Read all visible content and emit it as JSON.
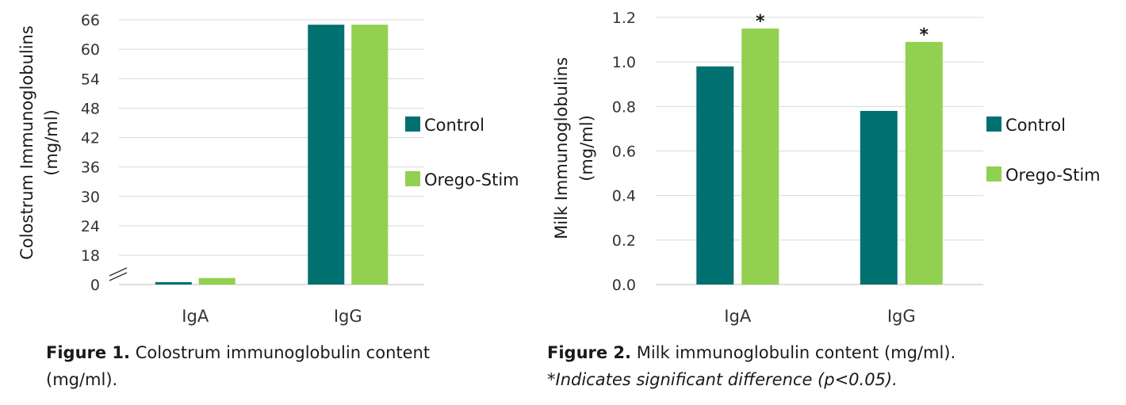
{
  "figure1": {
    "caption_label": "Figure 1.",
    "caption_text": "Colostrum immunoglobulin content (mg/ml).",
    "chart_data": {
      "type": "bar",
      "title": "",
      "xlabel": "",
      "ylabel_line1": "Colostrum Immunoglobulins",
      "ylabel_line2": "(mg/ml)",
      "categories": [
        "IgA",
        "IgG"
      ],
      "series": [
        {
          "name": "Control",
          "color": "#007070",
          "values": [
            1.5,
            65
          ]
        },
        {
          "name": "Orego-Stim",
          "color": "#92d050",
          "values": [
            4,
            65
          ]
        }
      ],
      "y_ticks": [
        0,
        18,
        24,
        30,
        36,
        42,
        48,
        54,
        60,
        66
      ],
      "ylim": [
        0,
        66
      ],
      "axis_break": [
        0,
        18
      ],
      "legend_position": "right",
      "gridlines": true
    }
  },
  "figure2": {
    "caption_label": "Figure 2.",
    "caption_text": "Milk immunoglobulin content (mg/ml).",
    "caption_note": "*Indicates significant difference (p<0.05).",
    "chart_data": {
      "type": "bar",
      "title": "",
      "xlabel": "",
      "ylabel_line1": "Milk Immunoglobulins",
      "ylabel_line2": "(mg/ml)",
      "categories": [
        "IgA",
        "IgG"
      ],
      "series": [
        {
          "name": "Control",
          "color": "#007070",
          "values": [
            0.98,
            0.78
          ]
        },
        {
          "name": "Orego-Stim",
          "color": "#92d050",
          "values": [
            1.15,
            1.09
          ]
        }
      ],
      "y_ticks": [
        "0.0",
        "0.2",
        "0.4",
        "0.6",
        "0.8",
        "1.0",
        "1.2"
      ],
      "ylim": [
        0,
        1.2
      ],
      "significance_marker": "*",
      "significant_series": "Orego-Stim",
      "legend_position": "right",
      "gridlines": true
    }
  }
}
